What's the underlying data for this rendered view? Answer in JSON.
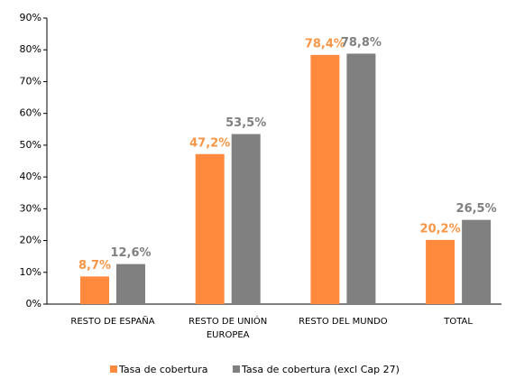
{
  "chart_data": {
    "type": "bar",
    "categories": [
      "RESTO DE ESPAÑA",
      "RESTO DE UNIÓN EUROPEA",
      "RESTO DEL MUNDO",
      "TOTAL"
    ],
    "series": [
      {
        "name": "Tasa de cobertura",
        "color": "#ff8a3d",
        "label_color": "#f79646",
        "values": [
          8.7,
          47.2,
          78.4,
          20.2
        ],
        "value_labels": [
          "8,7%",
          "47,2%",
          "78,4%",
          "20,2%"
        ]
      },
      {
        "name": "Tasa de cobertura (excl Cap 27)",
        "color": "#808080",
        "label_color": "#808080",
        "values": [
          12.6,
          53.5,
          78.8,
          26.5
        ],
        "value_labels": [
          "12,6%",
          "53,5%",
          "78,8%",
          "26,5%"
        ]
      }
    ],
    "ylim": [
      0,
      90
    ],
    "yticks": [
      {
        "value": 0,
        "label": "0%"
      },
      {
        "value": 10,
        "label": "10%"
      },
      {
        "value": 20,
        "label": "20%"
      },
      {
        "value": 30,
        "label": "30%"
      },
      {
        "value": 40,
        "label": "40%"
      },
      {
        "value": 50,
        "label": "50%"
      },
      {
        "value": 60,
        "label": "60%"
      },
      {
        "value": 70,
        "label": "70%"
      },
      {
        "value": 80,
        "label": "80%"
      },
      {
        "value": 90,
        "label": "90%"
      }
    ],
    "grid": false,
    "legend": "bottom"
  }
}
